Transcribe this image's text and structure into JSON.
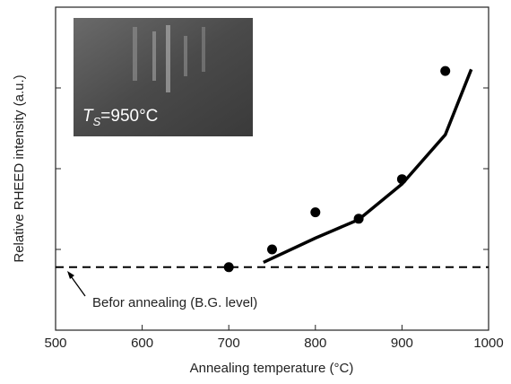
{
  "chart_data": {
    "type": "scatter",
    "xlabel": "Annealing temperature (°C)",
    "ylabel": "Relative RHEED intensity (a.u.)",
    "xlim": [
      500,
      1000
    ],
    "xticks": [
      500,
      600,
      700,
      800,
      900,
      1000
    ],
    "ylim": [
      0,
      4
    ],
    "yticks": [
      1,
      2,
      3
    ],
    "points": {
      "color": "#000000",
      "x": [
        700,
        750,
        800,
        850,
        900,
        950
      ],
      "values": [
        0.78,
        1.0,
        1.46,
        1.38,
        1.87,
        3.21
      ]
    },
    "fit": {
      "color": "#000000",
      "x": [
        740,
        800,
        850,
        900,
        950,
        980
      ],
      "values": [
        0.84,
        1.14,
        1.37,
        1.81,
        2.42,
        3.23
      ]
    },
    "baseline": {
      "color": "#000000",
      "x": [
        500,
        1000
      ],
      "values": [
        0.78,
        0.78
      ]
    },
    "annotation": "Befor annealing (B.G. level)",
    "inset_label": {
      "symbol": "T",
      "subscript": "S",
      "text": "=950°C"
    }
  }
}
